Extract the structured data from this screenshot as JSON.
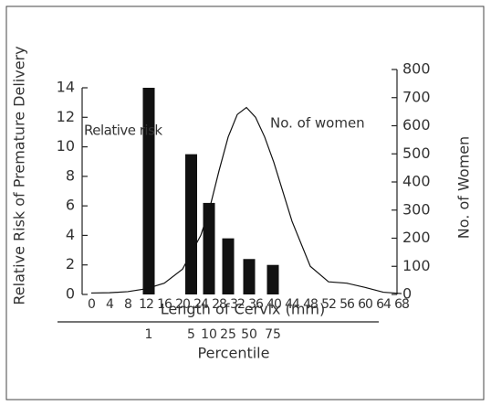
{
  "chart_data": {
    "type": "bar",
    "xlabel": "Length of Cervix (mm)",
    "ylabel": "Relative Risk of Premature Delivery",
    "y2label": "No. of Women",
    "xlim": [
      -2,
      68
    ],
    "xticks": [
      0,
      4,
      8,
      12,
      16,
      20,
      24,
      28,
      32,
      36,
      40,
      44,
      48,
      52,
      56,
      60,
      64,
      68
    ],
    "ylim": [
      0,
      14
    ],
    "yticks": [
      0,
      2,
      4,
      6,
      8,
      10,
      12,
      14
    ],
    "y2lim": [
      0,
      800
    ],
    "y2ticks": [
      0,
      100,
      200,
      300,
      400,
      500,
      600,
      700,
      800
    ],
    "series": [
      {
        "name": "Relative risk",
        "type": "bar",
        "color": "#111111",
        "x": [
          12.6,
          21.9,
          25.8,
          30,
          34.6,
          39.8
        ],
        "values": [
          14,
          9.5,
          6.2,
          3.8,
          2.4,
          2.0
        ]
      },
      {
        "name": "No. of women",
        "type": "line",
        "axis": "y2",
        "color": "#111111",
        "x": [
          0,
          4,
          8,
          12,
          16,
          20,
          24,
          26,
          28,
          30,
          32,
          34,
          36,
          38,
          40,
          44,
          48,
          52,
          56,
          60,
          64,
          68
        ],
        "values": [
          5,
          6,
          10,
          20,
          40,
          90,
          210,
          310,
          440,
          560,
          640,
          665,
          630,
          560,
          470,
          260,
          100,
          45,
          40,
          25,
          8,
          3
        ]
      }
    ],
    "percentile": {
      "label": "Percentile",
      "ticks": [
        {
          "value": 12.6,
          "label": "1"
        },
        {
          "value": 21.9,
          "label": "5"
        },
        {
          "value": 25.8,
          "label": "10"
        },
        {
          "value": 30,
          "label": "25"
        },
        {
          "value": 34.6,
          "label": "50"
        },
        {
          "value": 39.8,
          "label": "75"
        }
      ]
    }
  }
}
